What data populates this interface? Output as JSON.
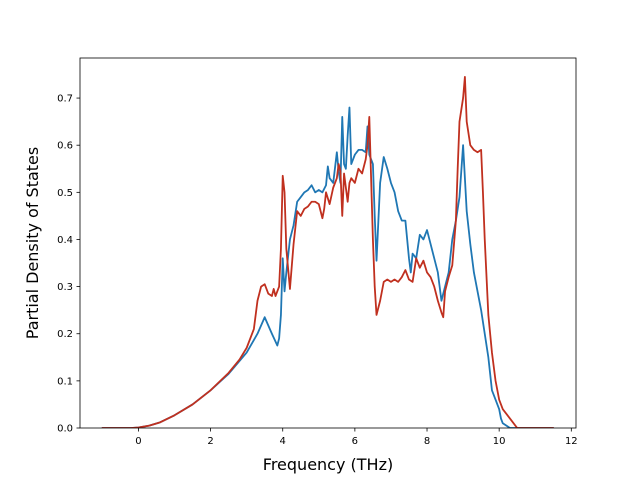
{
  "chart_data": {
    "type": "line",
    "title": "",
    "xlabel": "Frequency (THz)",
    "ylabel": "Partial Density of States",
    "xlim": [
      -1.62,
      12.13
    ],
    "ylim": [
      0.0,
      0.785
    ],
    "xticks": [
      0,
      2,
      4,
      6,
      8,
      10,
      12
    ],
    "yticks": [
      0.0,
      0.1,
      0.2,
      0.3,
      0.4,
      0.5,
      0.6,
      0.7
    ],
    "xtick_labels": [
      "0",
      "2",
      "4",
      "6",
      "8",
      "10",
      "12"
    ],
    "ytick_labels": [
      "0.0",
      "0.1",
      "0.2",
      "0.3",
      "0.4",
      "0.5",
      "0.6",
      "0.7"
    ],
    "grid": false,
    "legend": null,
    "series": [
      {
        "color": "#1f77b4",
        "x": [
          -1.0,
          -0.2,
          0.0,
          0.3,
          0.6,
          1.0,
          1.5,
          2.0,
          2.5,
          3.0,
          3.3,
          3.5,
          3.7,
          3.85,
          3.9,
          3.95,
          4.0,
          4.05,
          4.1,
          4.2,
          4.3,
          4.4,
          4.5,
          4.6,
          4.7,
          4.8,
          4.9,
          5.0,
          5.1,
          5.2,
          5.25,
          5.3,
          5.4,
          5.5,
          5.55,
          5.6,
          5.65,
          5.7,
          5.75,
          5.8,
          5.85,
          5.9,
          6.0,
          6.1,
          6.2,
          6.3,
          6.35,
          6.4,
          6.5,
          6.55,
          6.6,
          6.7,
          6.8,
          6.9,
          7.0,
          7.1,
          7.2,
          7.3,
          7.4,
          7.5,
          7.55,
          7.6,
          7.7,
          7.8,
          7.9,
          8.0,
          8.1,
          8.2,
          8.3,
          8.4,
          8.5,
          8.6,
          8.7,
          8.8,
          8.9,
          9.0,
          9.1,
          9.2,
          9.3,
          9.4,
          9.5,
          9.6,
          9.7,
          9.8,
          9.9,
          10.0,
          10.05,
          10.1,
          10.3,
          11.5
        ],
        "values": [
          0.0,
          0.0,
          0.001,
          0.005,
          0.012,
          0.027,
          0.05,
          0.08,
          0.115,
          0.16,
          0.2,
          0.235,
          0.2,
          0.175,
          0.19,
          0.24,
          0.36,
          0.29,
          0.33,
          0.4,
          0.43,
          0.48,
          0.49,
          0.5,
          0.505,
          0.515,
          0.5,
          0.505,
          0.5,
          0.515,
          0.555,
          0.53,
          0.52,
          0.585,
          0.545,
          0.52,
          0.66,
          0.56,
          0.55,
          0.62,
          0.68,
          0.56,
          0.58,
          0.59,
          0.59,
          0.585,
          0.64,
          0.58,
          0.56,
          0.45,
          0.355,
          0.52,
          0.575,
          0.55,
          0.52,
          0.5,
          0.46,
          0.44,
          0.44,
          0.36,
          0.33,
          0.37,
          0.36,
          0.41,
          0.4,
          0.42,
          0.39,
          0.36,
          0.33,
          0.27,
          0.3,
          0.33,
          0.4,
          0.44,
          0.49,
          0.6,
          0.46,
          0.39,
          0.33,
          0.29,
          0.25,
          0.2,
          0.15,
          0.08,
          0.06,
          0.04,
          0.02,
          0.01,
          0.0,
          0.0
        ]
      },
      {
        "color": "#c0301f",
        "x": [
          -1.0,
          -0.2,
          0.0,
          0.3,
          0.6,
          1.0,
          1.5,
          2.0,
          2.5,
          2.8,
          3.0,
          3.2,
          3.3,
          3.4,
          3.5,
          3.6,
          3.7,
          3.75,
          3.8,
          3.9,
          3.95,
          4.0,
          4.05,
          4.1,
          4.2,
          4.3,
          4.4,
          4.5,
          4.6,
          4.7,
          4.8,
          4.9,
          5.0,
          5.1,
          5.15,
          5.2,
          5.3,
          5.4,
          5.5,
          5.55,
          5.6,
          5.65,
          5.7,
          5.8,
          5.85,
          5.9,
          6.0,
          6.1,
          6.2,
          6.3,
          6.35,
          6.4,
          6.5,
          6.55,
          6.6,
          6.7,
          6.8,
          6.9,
          7.0,
          7.1,
          7.2,
          7.3,
          7.4,
          7.5,
          7.6,
          7.7,
          7.8,
          7.9,
          8.0,
          8.1,
          8.2,
          8.3,
          8.4,
          8.45,
          8.5,
          8.6,
          8.7,
          8.8,
          8.85,
          8.9,
          9.0,
          9.05,
          9.1,
          9.2,
          9.3,
          9.4,
          9.5,
          9.55,
          9.6,
          9.7,
          9.8,
          9.9,
          10.0,
          10.05,
          10.1,
          10.3,
          10.5,
          11.5
        ],
        "values": [
          0.0,
          0.0,
          0.001,
          0.005,
          0.012,
          0.027,
          0.05,
          0.08,
          0.117,
          0.145,
          0.17,
          0.21,
          0.27,
          0.3,
          0.305,
          0.285,
          0.28,
          0.295,
          0.28,
          0.3,
          0.38,
          0.535,
          0.5,
          0.38,
          0.295,
          0.39,
          0.46,
          0.45,
          0.465,
          0.47,
          0.48,
          0.48,
          0.475,
          0.445,
          0.465,
          0.5,
          0.475,
          0.51,
          0.53,
          0.56,
          0.545,
          0.45,
          0.54,
          0.48,
          0.52,
          0.53,
          0.52,
          0.55,
          0.54,
          0.57,
          0.6,
          0.66,
          0.4,
          0.3,
          0.24,
          0.27,
          0.31,
          0.315,
          0.31,
          0.315,
          0.31,
          0.32,
          0.335,
          0.315,
          0.31,
          0.36,
          0.34,
          0.355,
          0.33,
          0.32,
          0.3,
          0.27,
          0.245,
          0.235,
          0.29,
          0.32,
          0.345,
          0.44,
          0.55,
          0.65,
          0.7,
          0.745,
          0.65,
          0.6,
          0.59,
          0.585,
          0.59,
          0.5,
          0.4,
          0.24,
          0.16,
          0.1,
          0.06,
          0.05,
          0.04,
          0.02,
          0.0,
          0.0
        ]
      }
    ]
  }
}
